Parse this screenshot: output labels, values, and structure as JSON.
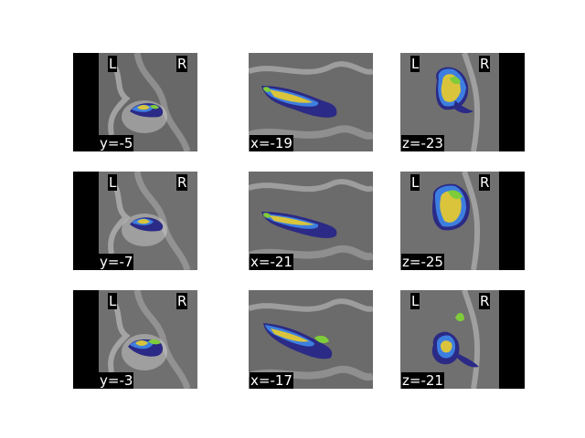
{
  "labels": {
    "left": "L",
    "right": "R"
  },
  "rows": [
    {
      "coronal": "y=-5",
      "sagittal": "x=-19",
      "axial": "z=-23"
    },
    {
      "coronal": "y=-7",
      "sagittal": "x=-21",
      "axial": "z=-25"
    },
    {
      "coronal": "y=-3",
      "sagittal": "x=-17",
      "axial": "z=-21"
    }
  ],
  "colors": {
    "background": "#ffffff",
    "slice_bg": "#000000",
    "tissue": "#6e6e6e",
    "overlay_navy": "#2b2a86",
    "overlay_blue": "#3d7fe0",
    "overlay_teal": "#3aa58c",
    "overlay_green": "#7fcc3a",
    "overlay_yellow": "#d9c43c"
  }
}
